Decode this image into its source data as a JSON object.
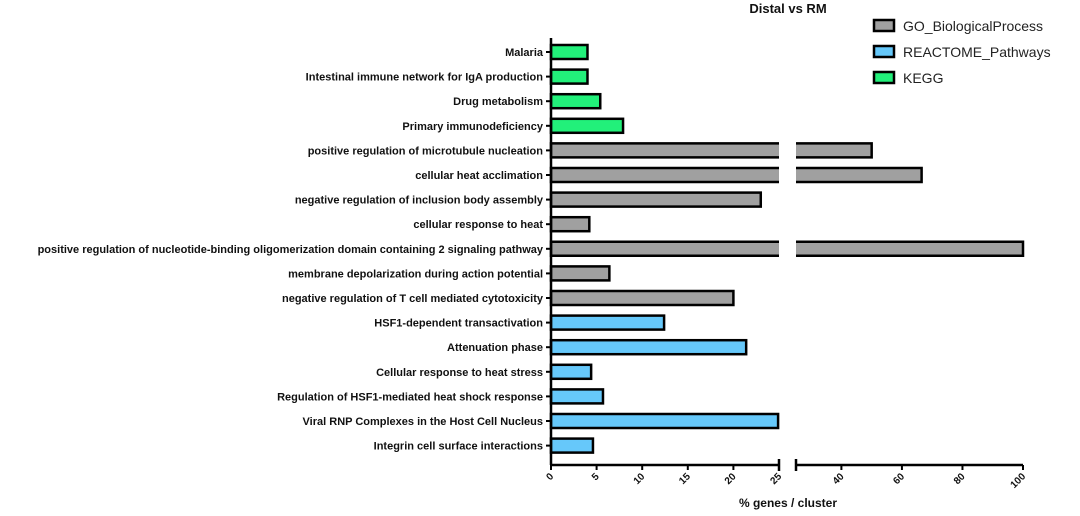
{
  "chart_data": {
    "type": "bar",
    "orientation": "horizontal",
    "title": "Distal vs RM",
    "xlabel": "% genes / cluster",
    "ylabel": "",
    "axis_break": {
      "from": 25,
      "to": 25
    },
    "xlim_segments": [
      [
        0,
        25
      ],
      [
        25,
        100
      ]
    ],
    "xticks_segment1": [
      "0",
      "5",
      "10",
      "15",
      "20",
      "25"
    ],
    "xticks_segment2": [
      "40",
      "60",
      "80",
      "100"
    ],
    "legend_position": "top-right",
    "legend": [
      {
        "name": "GO_BiologicalProcess",
        "color": "#a0a0a0"
      },
      {
        "name": "REACTOME_Pathways",
        "color": "#66c8fa"
      },
      {
        "name": "KEGG",
        "color": "#22f07a"
      }
    ],
    "categories": [
      "Malaria",
      "Intestinal immune network for IgA production",
      "Drug metabolism",
      "Primary immunodeficiency",
      "positive regulation of microtubule nucleation",
      "cellular heat acclimation",
      "negative regulation of inclusion body assembly",
      "cellular response to heat",
      "positive regulation of nucleotide-binding oligomerization domain containing 2 signaling pathway",
      "membrane depolarization during action potential",
      "negative regulation of T cell mediated cytotoxicity",
      "HSF1-dependent transactivation",
      "Attenuation phase",
      "Cellular response to heat stress",
      "Regulation of HSF1-mediated heat shock response",
      "Viral RNP Complexes in the Host Cell Nucleus",
      "Integrin cell surface interactions"
    ],
    "values": [
      4,
      4,
      5.4,
      7.9,
      50,
      66.5,
      23,
      4.2,
      100,
      6.4,
      20,
      12.4,
      21.4,
      4.4,
      5.7,
      24.9,
      4.6
    ],
    "series_of_category": [
      "KEGG",
      "KEGG",
      "KEGG",
      "KEGG",
      "GO_BiologicalProcess",
      "GO_BiologicalProcess",
      "GO_BiologicalProcess",
      "GO_BiologicalProcess",
      "GO_BiologicalProcess",
      "GO_BiologicalProcess",
      "GO_BiologicalProcess",
      "REACTOME_Pathways",
      "REACTOME_Pathways",
      "REACTOME_Pathways",
      "REACTOME_Pathways",
      "REACTOME_Pathways",
      "REACTOME_Pathways"
    ]
  }
}
